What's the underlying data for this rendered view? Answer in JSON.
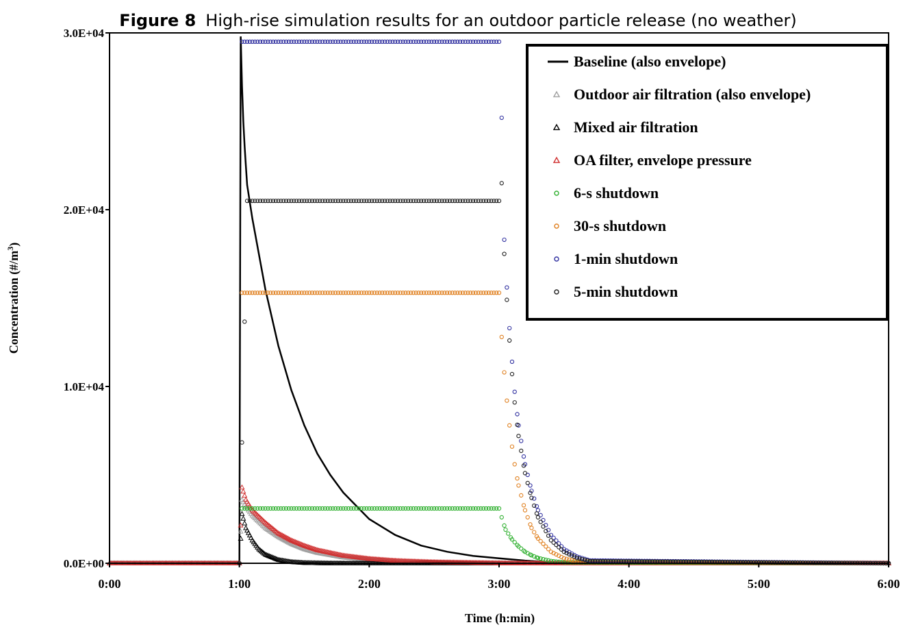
{
  "figure": {
    "label": "Figure 8",
    "caption": "High-rise simulation results for an outdoor particle release (no weather)"
  },
  "chart_data": {
    "type": "scatter",
    "title": "Figure 8 High-rise simulation results for an outdoor particle release (no weather)",
    "xlabel": "Time (h:min)",
    "ylabel": "Concentration (#/m³)",
    "xlim": [
      0,
      6
    ],
    "ylim": [
      0,
      30000
    ],
    "x_ticks": [
      0,
      1,
      2,
      3,
      4,
      5,
      6
    ],
    "x_tick_labels": [
      "0:00",
      "1:00",
      "2:00",
      "3:00",
      "4:00",
      "5:00",
      "6:00"
    ],
    "y_ticks": [
      0,
      10000,
      20000,
      30000
    ],
    "y_tick_labels": [
      "0.0E+00",
      "1.0E+04",
      "2.0E+04",
      "3.0E+04"
    ],
    "grid": false,
    "legend_position": "top-right",
    "series": [
      {
        "name": "Baseline (also envelope)",
        "marker": "line",
        "color": "#000000",
        "x": [
          0,
          1.0,
          1.01,
          1.02,
          1.03,
          1.04,
          1.05,
          1.06,
          1.1,
          1.2,
          1.3,
          1.4,
          1.5,
          1.6,
          1.7,
          1.8,
          2.0,
          2.2,
          2.4,
          2.6,
          2.8,
          3.0,
          3.2,
          3.4,
          3.6,
          6.0
        ],
        "y": [
          0,
          0,
          29800,
          27000,
          25000,
          23600,
          22500,
          21400,
          19500,
          15500,
          12300,
          9800,
          7800,
          6200,
          5000,
          4000,
          2500,
          1600,
          1000,
          650,
          420,
          280,
          150,
          60,
          10,
          0
        ]
      },
      {
        "name": "Outdoor air filtration (also envelope)",
        "marker": "triangle",
        "color": "#a0a0a0",
        "x": [
          0,
          1.0,
          1.02,
          1.05,
          1.1,
          1.2,
          1.3,
          1.4,
          1.5,
          1.6,
          1.8,
          2.0,
          2.2,
          2.5,
          3.0,
          3.3,
          6.0
        ],
        "y": [
          0,
          0,
          3600,
          3200,
          2700,
          2000,
          1500,
          1100,
          800,
          600,
          340,
          200,
          110,
          50,
          10,
          0,
          0
        ]
      },
      {
        "name": "Mixed air filtration",
        "marker": "triangle",
        "color": "#000000",
        "x": [
          0,
          1.0,
          1.02,
          1.05,
          1.1,
          1.15,
          1.2,
          1.3,
          1.4,
          1.5,
          1.7,
          2.0,
          6.0
        ],
        "y": [
          0,
          0,
          2800,
          2000,
          1300,
          800,
          500,
          200,
          80,
          30,
          5,
          0,
          0
        ]
      },
      {
        "name": "OA filter, envelope pressure",
        "marker": "triangle",
        "color": "#d03030",
        "x": [
          0,
          1.0,
          1.02,
          1.05,
          1.1,
          1.2,
          1.3,
          1.4,
          1.5,
          1.6,
          1.8,
          2.0,
          2.2,
          2.5,
          3.0,
          3.3,
          6.0
        ],
        "y": [
          0,
          0,
          4300,
          3600,
          3000,
          2300,
          1700,
          1300,
          1000,
          750,
          440,
          260,
          150,
          70,
          15,
          0,
          0
        ]
      },
      {
        "name": "6-s shutdown",
        "marker": "circle",
        "color": "#30b030",
        "x": [
          1.0,
          1.02,
          1.1,
          1.5,
          2.0,
          2.5,
          3.0,
          3.02,
          3.05,
          3.1,
          3.15,
          3.2,
          3.25,
          3.3,
          3.4,
          3.5,
          6.0
        ],
        "y": [
          0,
          3100,
          3100,
          3100,
          3100,
          3100,
          3100,
          2600,
          1900,
          1350,
          950,
          650,
          450,
          300,
          130,
          50,
          0
        ]
      },
      {
        "name": "30-s shutdown",
        "marker": "circle",
        "color": "#e08020",
        "x": [
          1.0,
          1.02,
          1.1,
          1.5,
          2.0,
          2.5,
          3.0,
          3.02,
          3.04,
          3.06,
          3.08,
          3.1,
          3.12,
          3.15,
          3.2,
          3.25,
          3.3,
          3.4,
          3.5,
          3.6,
          6.0
        ],
        "y": [
          0,
          15300,
          15300,
          15300,
          15300,
          15300,
          15300,
          12800,
          10800,
          9200,
          7800,
          6600,
          5600,
          4400,
          3000,
          2000,
          1400,
          650,
          280,
          100,
          0
        ]
      },
      {
        "name": "1-min shutdown",
        "marker": "circle",
        "color": "#3030a0",
        "x": [
          1.0,
          1.02,
          1.1,
          1.5,
          2.0,
          2.5,
          3.0,
          3.02,
          3.04,
          3.06,
          3.08,
          3.1,
          3.12,
          3.15,
          3.2,
          3.25,
          3.3,
          3.4,
          3.5,
          3.6,
          3.7,
          6.0
        ],
        "y": [
          0,
          29500,
          29500,
          29500,
          29500,
          29500,
          29500,
          25200,
          18300,
          15600,
          13300,
          11400,
          9700,
          7800,
          5600,
          4100,
          3000,
          1600,
          800,
          380,
          160,
          0
        ]
      },
      {
        "name": "5-min shutdown",
        "marker": "circle",
        "color": "#202020",
        "x": [
          1.0,
          1.06,
          1.1,
          1.5,
          2.0,
          2.5,
          3.0,
          3.02,
          3.04,
          3.06,
          3.08,
          3.1,
          3.12,
          3.15,
          3.2,
          3.25,
          3.3,
          3.4,
          3.5,
          3.6,
          3.7,
          6.0
        ],
        "y": [
          0,
          20500,
          20500,
          20500,
          20500,
          20500,
          20500,
          21500,
          17500,
          14900,
          12600,
          10700,
          9100,
          7200,
          5100,
          3700,
          2600,
          1300,
          650,
          300,
          120,
          0
        ]
      }
    ]
  }
}
